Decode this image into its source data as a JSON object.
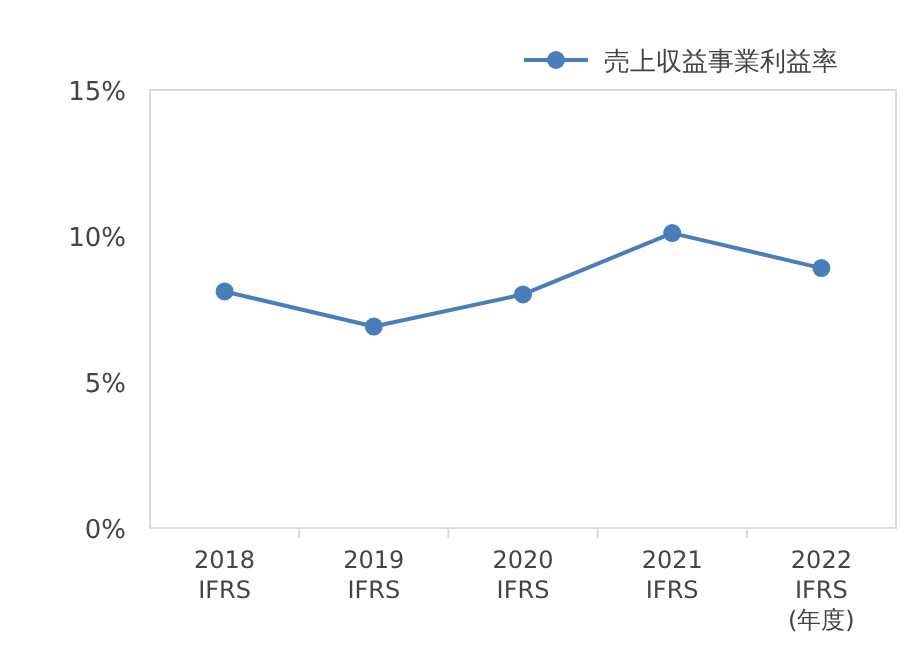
{
  "chart_data": {
    "type": "line",
    "categories": [
      "2018\nIFRS",
      "2019\nIFRS",
      "2020\nIFRS",
      "2021\nIFRS",
      "2022\nIFRS\n(年度)"
    ],
    "series": [
      {
        "name": "売上収益事業利益率",
        "color": "#4a7ebb",
        "values": [
          8.1,
          6.9,
          8.0,
          10.1,
          8.9
        ]
      }
    ],
    "ylim": [
      0,
      15
    ],
    "yticks": [
      {
        "value": 0,
        "label": "0%"
      },
      {
        "value": 5,
        "label": "5%"
      },
      {
        "value": 10,
        "label": "10%"
      },
      {
        "value": 15,
        "label": "15%"
      }
    ],
    "grid": false,
    "legend": "top right",
    "marker": "circle",
    "line_style": "solid"
  }
}
